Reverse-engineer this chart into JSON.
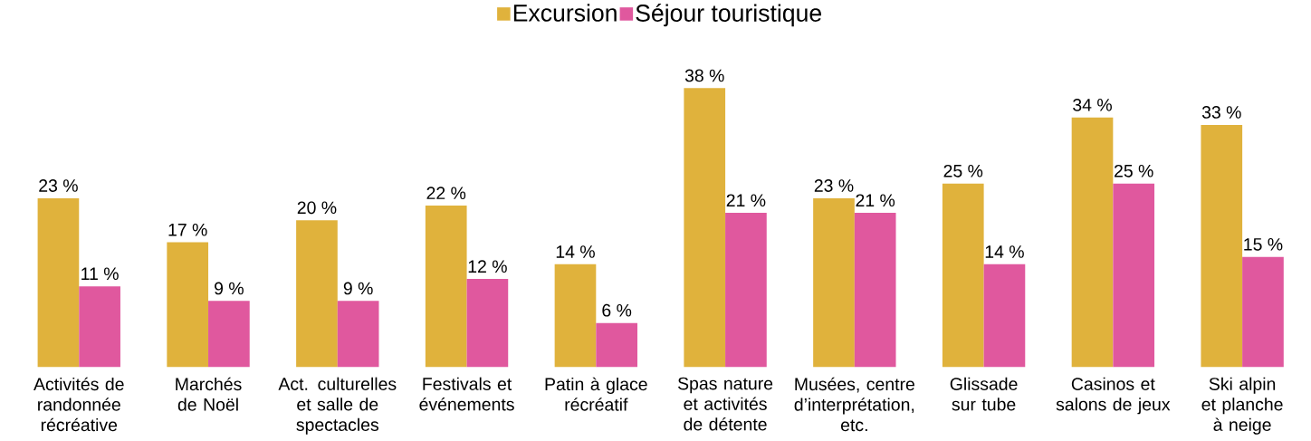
{
  "chart_data": {
    "type": "bar",
    "categories": [
      "Activités de randonnée récréative",
      "Marchés de Noël",
      "Act. culturelles et salle de spectacles",
      "Festivals et événements",
      "Patin à glace récréatif",
      "Spas nature et activités de détente",
      "Musées, centre d’interprétation, etc.",
      "Glissade sur tube",
      "Casinos et salons de jeux",
      "Ski alpin et planche à neige"
    ],
    "series": [
      {
        "name": "Excursion",
        "color": "#e0b23c",
        "values": [
          23,
          17,
          20,
          22,
          14,
          38,
          23,
          25,
          34,
          33
        ],
        "value_labels": [
          "23 %",
          "17 %",
          "20 %",
          "22 %",
          "14 %",
          "38 %",
          "23 %",
          "25 %",
          "34 %",
          "33 %"
        ]
      },
      {
        "name": "Séjour touristique",
        "color": "#e0589e",
        "values": [
          11,
          9,
          9,
          12,
          6,
          21,
          21,
          14,
          25,
          15
        ],
        "value_labels": [
          "11 %",
          "9 %",
          "9 %",
          "12 %",
          "6 %",
          "21 %",
          "21 %",
          "14 %",
          "25 %",
          "15 %"
        ]
      }
    ],
    "legend": "top"
  }
}
